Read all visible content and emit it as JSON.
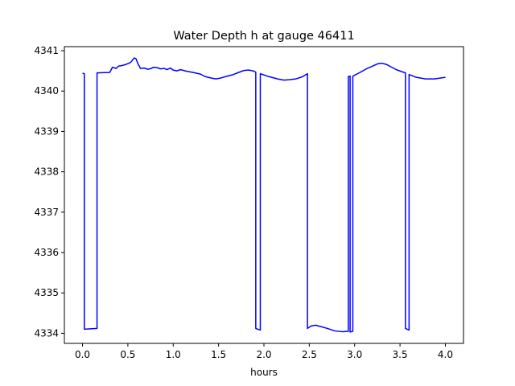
{
  "chart_data": {
    "type": "line",
    "title": "Water Depth h at gauge 46411",
    "xlabel": "hours",
    "ylabel": "",
    "xlim": [
      -0.2,
      4.2
    ],
    "ylim": [
      4333.75,
      4341.1
    ],
    "xticks": [
      0.0,
      0.5,
      1.0,
      1.5,
      2.0,
      2.5,
      3.0,
      3.5,
      4.0
    ],
    "xtick_labels": [
      "0.0",
      "0.5",
      "1.0",
      "1.5",
      "2.0",
      "2.5",
      "3.0",
      "3.5",
      "4.0"
    ],
    "yticks": [
      4334,
      4335,
      4336,
      4337,
      4338,
      4339,
      4340,
      4341
    ],
    "ytick_labels": [
      "4334",
      "4335",
      "4336",
      "4337",
      "4338",
      "4339",
      "4340",
      "4341"
    ],
    "grid": false,
    "legend": "none",
    "series": [
      {
        "color": "#0000ff",
        "x": [
          0.0,
          0.02,
          0.02,
          0.16,
          0.16,
          0.3,
          0.33,
          0.37,
          0.4,
          0.43,
          0.48,
          0.53,
          0.57,
          0.59,
          0.61,
          0.64,
          0.68,
          0.72,
          0.76,
          0.78,
          0.82,
          0.86,
          0.9,
          0.93,
          0.97,
          1.0,
          1.04,
          1.08,
          1.15,
          1.22,
          1.3,
          1.35,
          1.42,
          1.47,
          1.52,
          1.58,
          1.65,
          1.72,
          1.78,
          1.83,
          1.88,
          1.91,
          1.91,
          1.96,
          1.96,
          2.05,
          2.15,
          2.22,
          2.28,
          2.35,
          2.42,
          2.48,
          2.48,
          2.52,
          2.57,
          2.62,
          2.7,
          2.78,
          2.86,
          2.93,
          2.93,
          2.95,
          2.95,
          2.98,
          2.98,
          3.05,
          3.13,
          3.2,
          3.26,
          3.3,
          3.35,
          3.4,
          3.46,
          3.52,
          3.56,
          3.56,
          3.6,
          3.6,
          3.68,
          3.78,
          3.88,
          4.0
        ],
        "y": [
          4340.44,
          4340.43,
          4334.1,
          4334.12,
          4340.45,
          4340.46,
          4340.59,
          4340.56,
          4340.62,
          4340.63,
          4340.66,
          4340.71,
          4340.82,
          4340.8,
          4340.68,
          4340.56,
          4340.57,
          4340.54,
          4340.56,
          4340.59,
          4340.58,
          4340.55,
          4340.56,
          4340.53,
          4340.57,
          4340.52,
          4340.5,
          4340.53,
          4340.49,
          4340.46,
          4340.42,
          4340.36,
          4340.32,
          4340.3,
          4340.32,
          4340.36,
          4340.4,
          4340.46,
          4340.51,
          4340.52,
          4340.5,
          4340.47,
          4334.12,
          4334.08,
          4340.43,
          4340.36,
          4340.3,
          4340.27,
          4340.28,
          4340.3,
          4340.35,
          4340.43,
          4334.12,
          4334.18,
          4334.2,
          4334.17,
          4334.12,
          4334.06,
          4334.04,
          4334.05,
          4340.36,
          4340.37,
          4334.03,
          4334.05,
          4340.37,
          4340.45,
          4340.55,
          4340.62,
          4340.68,
          4340.69,
          4340.66,
          4340.6,
          4340.53,
          4340.48,
          4340.45,
          4334.12,
          4334.08,
          4340.41,
          4340.34,
          4340.3,
          4340.3,
          4340.34
        ]
      }
    ]
  }
}
